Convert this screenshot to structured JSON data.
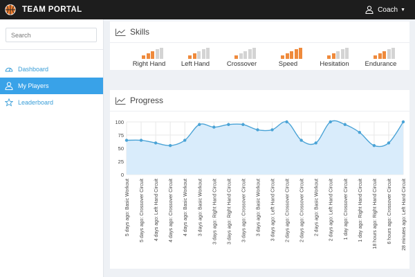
{
  "app": {
    "title": "TEAM PORTAL"
  },
  "user": {
    "name": "Coach"
  },
  "search": {
    "placeholder": "Search"
  },
  "sidebar": {
    "items": [
      {
        "label": "Dashboard",
        "icon": "dashboard-icon",
        "active": false
      },
      {
        "label": "My Players",
        "icon": "user-icon",
        "active": true
      },
      {
        "label": "Leaderboard",
        "icon": "star-icon",
        "active": false
      }
    ]
  },
  "skills": {
    "title": "Skills",
    "items": [
      {
        "label": "Right Hand",
        "level": 3,
        "max": 5
      },
      {
        "label": "Left Hand",
        "level": 2,
        "max": 5
      },
      {
        "label": "Crossover",
        "level": 1,
        "max": 5
      },
      {
        "label": "Speed",
        "level": 5,
        "max": 5
      },
      {
        "label": "Hesitation",
        "level": 2,
        "max": 5
      },
      {
        "label": "Endurance",
        "level": 3,
        "max": 5
      }
    ]
  },
  "progress": {
    "title": "Progress"
  },
  "colors": {
    "accent": "#39a2e8",
    "skill_on": "#ef8a3c",
    "skill_off": "#d4d4d4",
    "line": "#4aa3d6",
    "fill": "#d9ecfb"
  },
  "chart_data": {
    "type": "area",
    "ylim": [
      0,
      100
    ],
    "yticks": [
      0,
      25,
      50,
      75,
      100
    ],
    "grid": true,
    "x": [
      "5 days ago: Basic Workout",
      "5 days ago: Crossover Circuit",
      "4 days ago: Left Hand Circuit",
      "4 days ago: Crossover Circuit",
      "4 days ago: Basic Workout",
      "3 days ago: Basic Workout",
      "3 days ago: Right Hand Circuit",
      "3 days ago: Right Hand Circuit",
      "3 days ago: Crossover Circuit",
      "3 days ago: Basic Workout",
      "3 days ago: Left Hand Circuit",
      "2 days ago: Crossover Circuit",
      "2 days ago: Crossover Circuit",
      "2 days ago: Basic Workout",
      "2 days ago: Left Hand Circuit",
      "1 day ago: Crossover Circuit",
      "1 day ago: Right Hand Circuit",
      "18 hours ago: Right Hand Circuit",
      "6 hours ago: Crossover Circuit",
      "28 minutes ago: Left Hand Circuit"
    ],
    "series": [
      {
        "values": [
          65,
          65,
          60,
          55,
          65,
          95,
          90,
          95,
          95,
          85,
          85,
          100,
          65,
          60,
          100,
          95,
          80,
          55,
          60,
          100
        ]
      }
    ]
  }
}
